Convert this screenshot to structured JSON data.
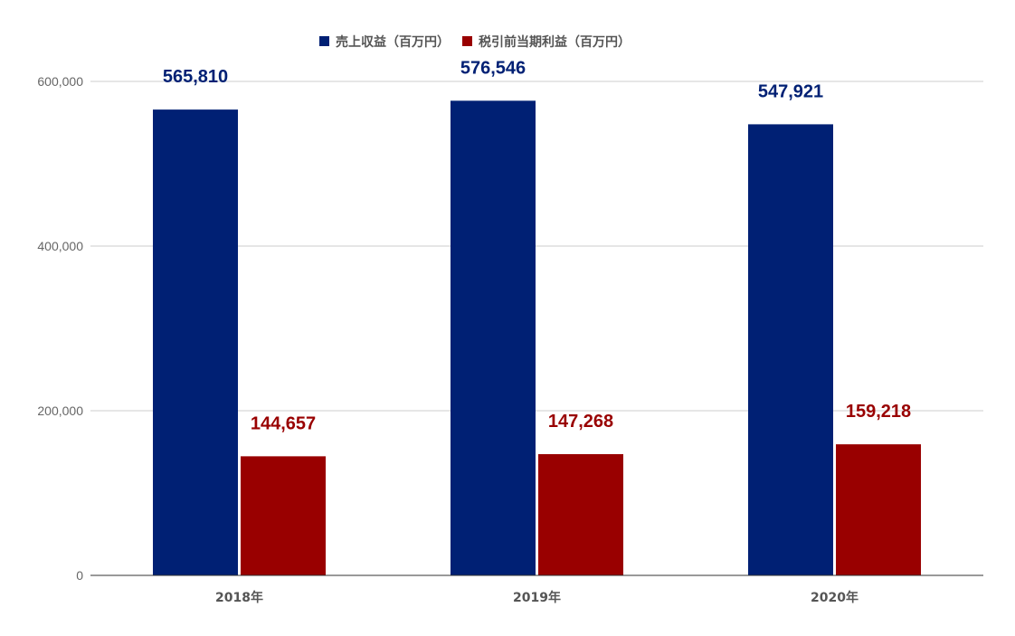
{
  "chart_data": {
    "type": "bar",
    "title": "",
    "xlabel": "",
    "ylabel": "",
    "categories": [
      "2018年",
      "2019年",
      "2020年"
    ],
    "series": [
      {
        "name": "売上収益（百万円）",
        "color": "#002074",
        "values": [
          565810,
          576546,
          547921
        ],
        "labels": [
          "565,810",
          "576,546",
          "547,921"
        ]
      },
      {
        "name": "税引前当期利益（百万円）",
        "color": "#990000",
        "values": [
          144657,
          147268,
          159218
        ],
        "labels": [
          "144,657",
          "147,268",
          "159,218"
        ]
      }
    ],
    "ylim": [
      0,
      600000
    ],
    "yticks": [
      0,
      200000,
      400000,
      600000
    ],
    "ytick_labels": [
      "0",
      "200,000",
      "400,000",
      "600,000"
    ],
    "grid": true,
    "legend_position": "top-center"
  }
}
